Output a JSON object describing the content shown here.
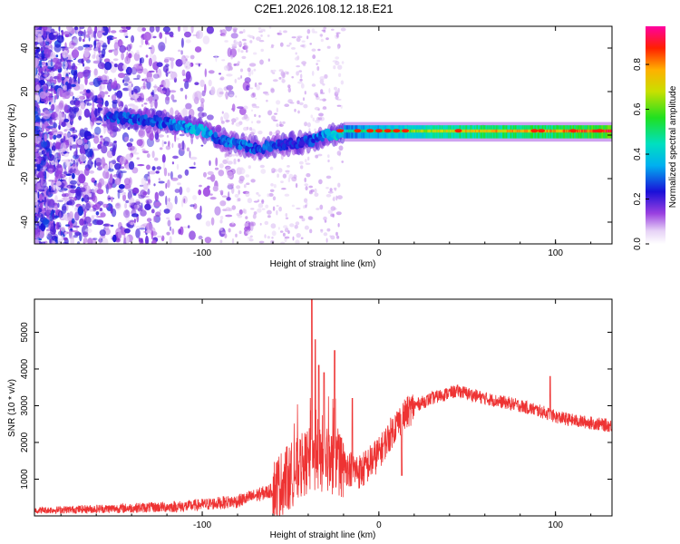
{
  "figure": {
    "title": "C2E1.2026.108.12.18.E21"
  },
  "chart_data": [
    {
      "type": "heatmap",
      "name": "spectrogram",
      "xlabel": "Height of straight line (km)",
      "ylabel": "Frequency (Hz)",
      "xlim": [
        -195,
        132
      ],
      "ylim": [
        -50,
        50
      ],
      "xticks": [
        -100,
        0,
        100
      ],
      "yticks": [
        -40,
        -20,
        0,
        20,
        40
      ],
      "xtick_labels": [
        "-100",
        "0",
        "100"
      ],
      "ytick_labels": [
        "-40",
        "-20",
        "0",
        "20",
        "40"
      ],
      "colorbar": {
        "label": "Normalized spectral amplitude",
        "range": [
          0,
          0.97
        ],
        "ticks": [
          0.0,
          0.2,
          0.4,
          0.6,
          0.8
        ],
        "tick_labels": [
          "0.0",
          "0.2",
          "0.4",
          "0.6",
          "0.8"
        ]
      },
      "ridge": {
        "description_points_x_km": [
          -150,
          -130,
          -110,
          -100,
          -90,
          -80,
          -70,
          -60,
          -50,
          -40,
          -30,
          -20,
          0,
          20,
          50,
          100,
          132
        ],
        "frequency_hz": [
          8,
          7,
          4,
          2,
          -2,
          -4,
          -6,
          -5,
          -4,
          -3,
          0,
          1,
          2,
          2,
          2,
          2,
          2
        ],
        "amplitude": [
          0.3,
          0.3,
          0.35,
          0.4,
          0.3,
          0.35,
          0.3,
          0.3,
          0.25,
          0.3,
          0.35,
          0.5,
          0.6,
          0.7,
          0.8,
          0.85,
          0.97
        ]
      },
      "color": "#7a1fd0"
    },
    {
      "type": "line",
      "name": "snr",
      "xlabel": "Height of straight line (km)",
      "ylabel": "SNR (10 * v/v)",
      "xlim": [
        -195,
        132
      ],
      "ylim": [
        0,
        5900
      ],
      "xticks": [
        -100,
        0,
        100
      ],
      "yticks": [
        1000,
        2000,
        3000,
        4000,
        5000
      ],
      "xtick_labels": [
        "-100",
        "0",
        "100"
      ],
      "ytick_labels": [
        "1000",
        "2000",
        "3000",
        "4000",
        "5000"
      ],
      "envelope": {
        "x": [
          -195,
          -150,
          -110,
          -80,
          -60,
          -50,
          -40,
          -30,
          -25,
          -20,
          -10,
          0,
          10,
          20,
          30,
          40,
          45,
          60,
          80,
          95,
          100,
          110,
          132
        ],
        "y": [
          150,
          200,
          260,
          400,
          700,
          1100,
          1500,
          1500,
          1450,
          1350,
          1200,
          1700,
          2500,
          3000,
          3200,
          3350,
          3400,
          3200,
          3000,
          2800,
          2700,
          2600,
          2450
        ]
      },
      "spikes": {
        "x": [
          -38,
          -36,
          -34,
          -31,
          -25,
          -15,
          13,
          97
        ],
        "y": [
          5900,
          4800,
          4100,
          3900,
          4500,
          3200,
          1100,
          3800
        ]
      },
      "color": "#ee3333"
    }
  ]
}
